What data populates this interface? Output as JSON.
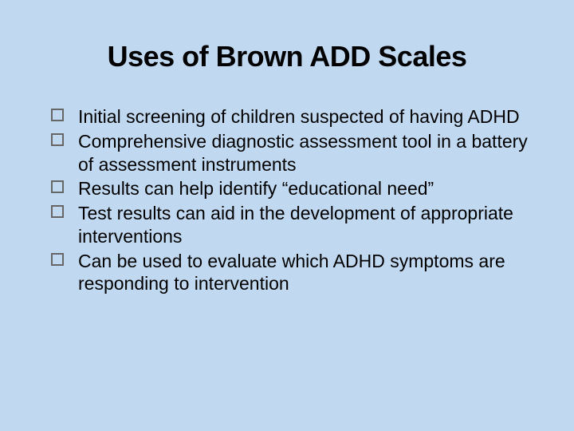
{
  "slide": {
    "title": "Uses of Brown ADD Scales",
    "bullets": [
      "Initial screening of children suspected of having ADHD",
      "Comprehensive diagnostic assessment tool in a battery of assessment instruments",
      "Results can help identify “educational need”",
      "Test results can aid in the development of appropriate interventions",
      "Can be used to evaluate which ADHD symptoms are responding to intervention"
    ],
    "background_color": "#c0d8f0",
    "title_color": "#000000",
    "text_color": "#000000",
    "bullet_border_color": "#666666",
    "title_fontsize": 36,
    "text_fontsize": 23
  }
}
